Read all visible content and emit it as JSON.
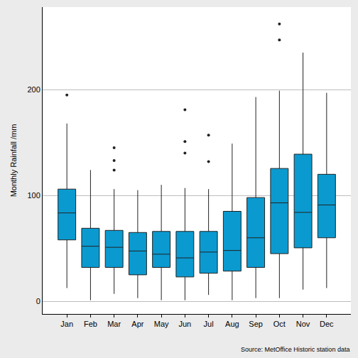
{
  "chart_data": {
    "type": "box",
    "y_label": "Monthly Rainfall /mm",
    "annotation": "Source: MetOffice Historic station data",
    "categories": [
      "Jan",
      "Feb",
      "Mar",
      "Apr",
      "May",
      "Jun",
      "Jul",
      "Aug",
      "Sep",
      "Oct",
      "Nov",
      "Dec"
    ],
    "q1": [
      58,
      32,
      32,
      25,
      32,
      23,
      26.5,
      28.5,
      32,
      45,
      50.5,
      60
    ],
    "median": [
      83.5,
      52,
      51,
      47.5,
      44.5,
      41,
      46.5,
      48,
      60,
      93,
      84,
      91
    ],
    "q3": [
      106,
      69,
      67,
      65,
      66,
      66,
      66,
      85,
      98,
      125.5,
      139,
      120
    ],
    "lower_whisker": [
      12.5,
      1,
      7,
      3,
      1,
      1,
      6,
      1,
      3,
      3,
      11,
      12.5
    ],
    "upper_whisker": [
      168,
      124,
      106,
      105,
      110,
      107,
      106,
      149,
      193,
      199,
      235,
      197
    ],
    "outliers": [
      [
        195
      ],
      [],
      [
        145,
        133,
        124
      ],
      [],
      [],
      [
        181,
        151,
        140
      ],
      [
        157,
        132
      ],
      [],
      [],
      [
        262,
        247
      ],
      [],
      []
    ],
    "color": "#0a9ad0",
    "ylim": [
      -12,
      278
    ],
    "yticks": [
      0,
      100,
      200
    ],
    "grid": true
  }
}
